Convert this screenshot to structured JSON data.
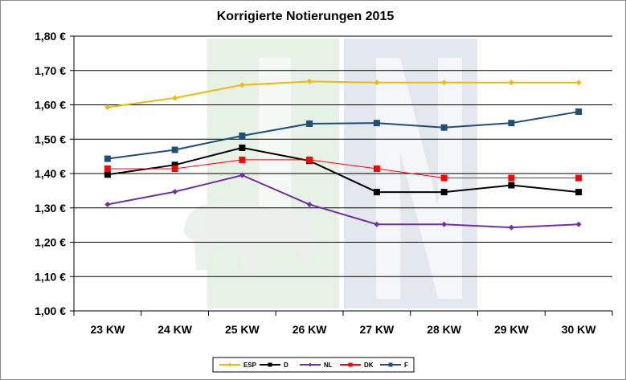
{
  "chart_data": {
    "type": "line",
    "title": "Korrigierte Notierungen 2015",
    "categories": [
      "23 KW",
      "24 KW",
      "25 KW",
      "26 KW",
      "27 KW",
      "28 KW",
      "29 KW",
      "30 KW"
    ],
    "ylim": [
      1.0,
      1.8
    ],
    "yticks": [
      "1,00 €",
      "1,10 €",
      "1,20 €",
      "1,30 €",
      "1,40 €",
      "1,50 €",
      "1,60 €",
      "1,70 €",
      "1,80 €"
    ],
    "grid": true,
    "legend_position": "bottom",
    "series": [
      {
        "name": "ESP",
        "color": "#f5b800",
        "marker": "diamond",
        "values": [
          1.593,
          1.62,
          1.658,
          1.668,
          1.665,
          1.665,
          1.665,
          1.665
        ]
      },
      {
        "name": "D",
        "color": "#000000",
        "marker": "square",
        "values": [
          1.397,
          1.425,
          1.475,
          1.437,
          1.346,
          1.346,
          1.366,
          1.346
        ]
      },
      {
        "name": "NL",
        "color": "#7030a0",
        "marker": "diamond",
        "values": [
          1.31,
          1.347,
          1.395,
          1.31,
          1.252,
          1.252,
          1.243,
          1.252
        ]
      },
      {
        "name": "DK",
        "color": "#ff0000",
        "marker": "square",
        "values": [
          1.414,
          1.414,
          1.44,
          1.44,
          1.414,
          1.387,
          1.387,
          1.387
        ]
      },
      {
        "name": "F",
        "color": "#1f4e79",
        "marker": "square",
        "values": [
          1.443,
          1.469,
          1.51,
          1.545,
          1.547,
          1.534,
          1.547,
          1.58
        ]
      }
    ]
  }
}
